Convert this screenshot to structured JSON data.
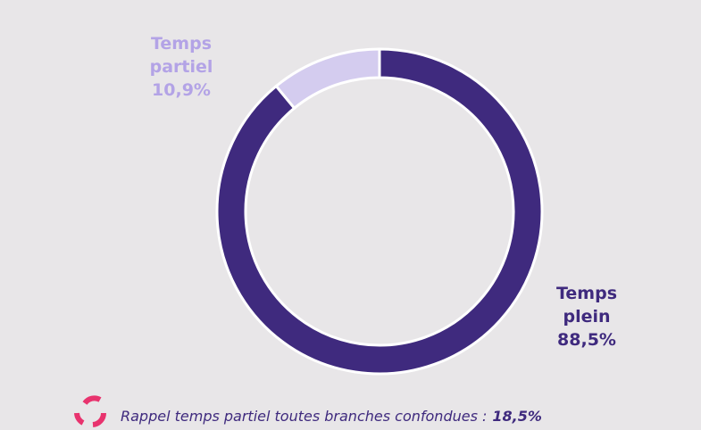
{
  "chart_data": {
    "type": "donut",
    "categories": [
      "Temps plein",
      "Temps partiel"
    ],
    "values": [
      88.5,
      10.9
    ],
    "value_labels": [
      "88,5%",
      "10,9%"
    ],
    "colors": [
      "#3f2a7e",
      "#d4ccef"
    ],
    "label_colors": [
      "#3f2a7e",
      "#b3a3e6"
    ],
    "note": "Rappel temps partiel toutes branches confondues :",
    "note_value": "18,5%"
  }
}
